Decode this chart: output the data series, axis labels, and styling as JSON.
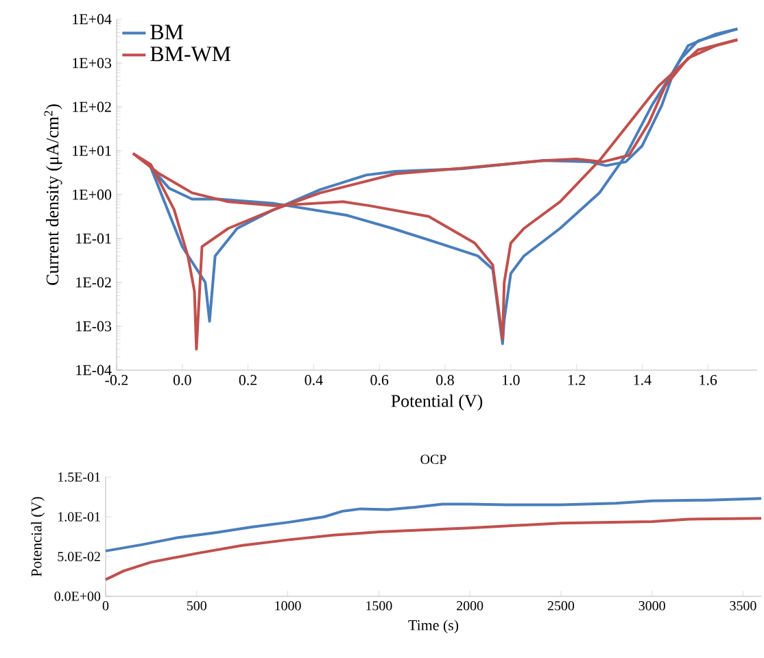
{
  "chart_data": [
    {
      "type": "line",
      "xlabel": "Potential (V)",
      "ylabel": "Current density (μA/cm$^{2}$)",
      "log": "y",
      "legend": "top left",
      "xlim": [
        -0.2,
        1.75
      ],
      "ylim": [
        0.0001,
        10000
      ],
      "xticks": [
        {
          "value": -0.2,
          "label": "-0.2"
        },
        {
          "value": 0,
          "label": "0.0"
        },
        {
          "value": 0.2,
          "label": "0.2"
        },
        {
          "value": 0.4,
          "label": "0.4"
        },
        {
          "value": 0.6,
          "label": "0.6"
        },
        {
          "value": 0.8,
          "label": "0.8"
        },
        {
          "value": 1.0,
          "label": "1.0"
        },
        {
          "value": 1.2,
          "label": "1.2"
        },
        {
          "value": 1.4,
          "label": "1.4"
        },
        {
          "value": 1.6,
          "label": "1.6"
        }
      ],
      "yticks": [
        {
          "value": 0.0001,
          "label": "1E-04"
        },
        {
          "value": 0.001,
          "label": "1E-03"
        },
        {
          "value": 0.01,
          "label": "1E-02"
        },
        {
          "value": 0.1,
          "label": "1E-01"
        },
        {
          "value": 1,
          "label": "1E+00"
        },
        {
          "value": 10,
          "label": "1E+01"
        },
        {
          "value": 100,
          "label": "1E+02"
        },
        {
          "value": 1000,
          "label": "1E+03"
        },
        {
          "value": 10000,
          "label": "1E+04"
        }
      ],
      "series": [
        {
          "name": "BM",
          "color": "#4a7ebb",
          "x": [
            -0.096,
            0.0,
            0.07,
            0.083,
            0.1,
            0.167,
            0.28,
            0.42,
            0.56,
            0.65,
            0.85,
            1.1,
            1.24,
            1.29,
            1.35,
            1.4,
            1.46,
            1.5,
            1.54,
            1.625,
            1.69
          ],
          "values": [
            4.2,
            0.065,
            0.01,
            0.0013,
            0.04,
            0.17,
            0.46,
            1.3,
            2.8,
            3.4,
            3.9,
            6.0,
            5.6,
            4.6,
            5.6,
            13,
            110,
            760,
            2500,
            4600,
            6000
          ]
        },
        {
          "color": "#4a7ebb",
          "x": [
            1.69,
            1.57,
            1.52,
            1.43,
            1.35,
            1.27,
            1.15,
            1.04,
            1.0,
            0.98,
            0.975,
            0.945,
            0.9,
            0.78,
            0.64,
            0.5,
            0.28,
            0.11,
            0.03,
            -0.04,
            -0.096
          ],
          "values": [
            6000,
            3200,
            1300,
            110,
            7.9,
            1.1,
            0.17,
            0.04,
            0.016,
            0.0014,
            0.0004,
            0.02,
            0.04,
            0.079,
            0.17,
            0.34,
            0.63,
            0.79,
            0.79,
            1.4,
            4.2
          ]
        },
        {
          "name": "BM-WM",
          "color": "#c0504d",
          "x": [
            -0.15,
            -0.096,
            -0.025,
            0.017,
            0.037,
            0.043,
            0.06,
            0.14,
            0.28,
            0.42,
            0.65,
            0.85,
            1.1,
            1.2,
            1.28,
            1.36,
            1.42,
            1.47,
            1.54,
            1.625,
            1.69
          ],
          "values": [
            8.7,
            4.9,
            0.46,
            0.04,
            0.0063,
            0.0003,
            0.065,
            0.17,
            0.46,
            1.1,
            3.0,
            4.0,
            6.0,
            6.5,
            5.6,
            7.9,
            43,
            300,
            1300,
            2500,
            3400
          ]
        },
        {
          "color": "#c0504d",
          "x": [
            1.69,
            1.57,
            1.45,
            1.35,
            1.27,
            1.15,
            1.04,
            1.0,
            0.98,
            0.975,
            0.945,
            0.89,
            0.75,
            0.57,
            0.49,
            0.28,
            0.14,
            0.03,
            -0.07,
            -0.15
          ],
          "values": [
            3400,
            2000,
            300,
            34,
            6.0,
            0.69,
            0.17,
            0.079,
            0.01,
            0.0005,
            0.025,
            0.079,
            0.32,
            0.56,
            0.69,
            0.56,
            0.69,
            1.1,
            3.0,
            8.7
          ]
        }
      ]
    },
    {
      "type": "line",
      "title": "OCP",
      "xlabel": "Time (s)",
      "ylabel": "Potencial (V)",
      "xlim": [
        0,
        3600
      ],
      "ylim": [
        0,
        0.15
      ],
      "xticks": [
        0,
        500,
        1000,
        1500,
        2000,
        2500,
        3000,
        3500
      ],
      "yticks": [
        {
          "value": 0,
          "label": "0.0E+00"
        },
        {
          "value": 0.05,
          "label": "5.0E-02"
        },
        {
          "value": 0.1,
          "label": "1.0E-01"
        },
        {
          "value": 0.15,
          "label": "1.5E-01"
        }
      ],
      "series": [
        {
          "color": "#4a7ebb",
          "x": [
            0,
            200,
            400,
            600,
            800,
            1000,
            1200,
            1300,
            1400,
            1550,
            1700,
            1850,
            2000,
            2200,
            2500,
            2800,
            3000,
            3300,
            3600
          ],
          "values": [
            0.057,
            0.065,
            0.074,
            0.08,
            0.087,
            0.093,
            0.1,
            0.107,
            0.11,
            0.109,
            0.112,
            0.116,
            0.116,
            0.115,
            0.115,
            0.117,
            0.12,
            0.121,
            0.123
          ]
        },
        {
          "color": "#c0504d",
          "x": [
            0,
            100,
            250,
            500,
            750,
            1000,
            1250,
            1500,
            2000,
            2500,
            3000,
            3200,
            3600
          ],
          "values": [
            0.021,
            0.032,
            0.043,
            0.054,
            0.064,
            0.071,
            0.077,
            0.081,
            0.086,
            0.092,
            0.094,
            0.097,
            0.098
          ]
        }
      ]
    }
  ]
}
